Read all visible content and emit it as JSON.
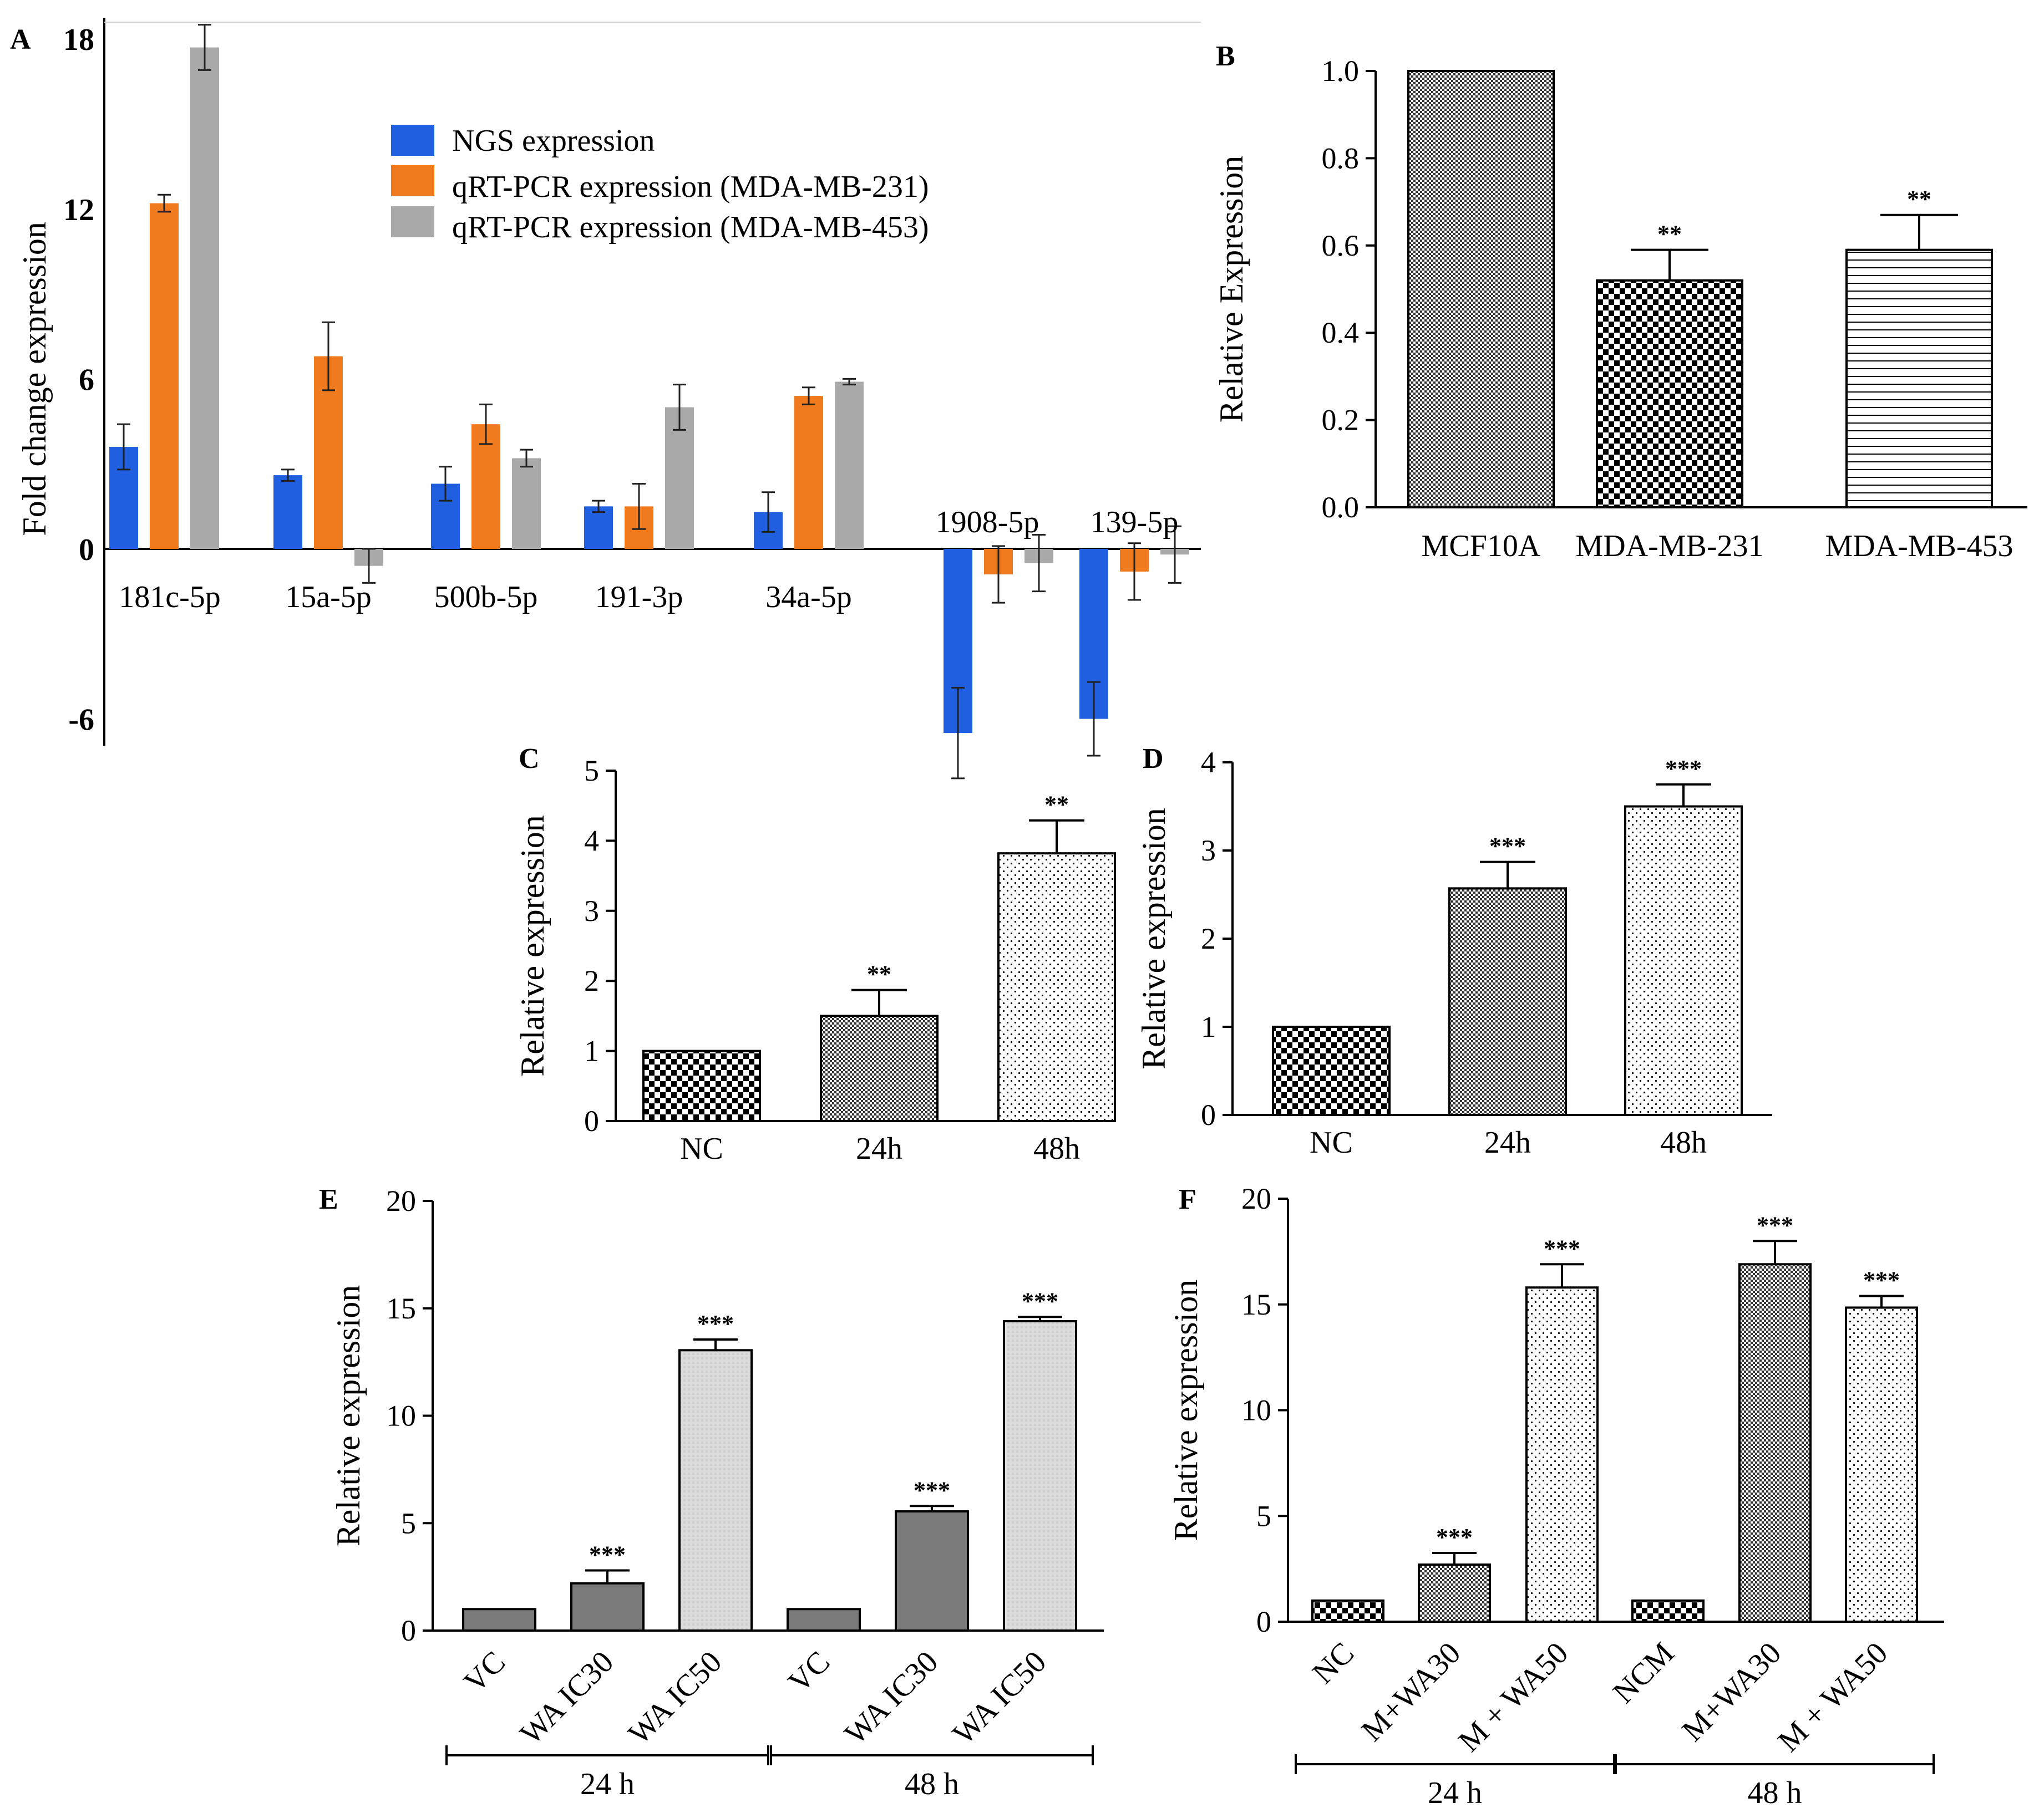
{
  "figure": {
    "colors": {
      "ngs": "#1f5fe0",
      "mda231": "#f07a1e",
      "mda453": "#a9a9a9",
      "axis": "#000000"
    }
  },
  "chart_data": [
    {
      "panel": "A",
      "type": "bar",
      "title": "",
      "xlabel": "",
      "ylabel": "Fold change expression",
      "ylim": [
        -7,
        18
      ],
      "yticks": [
        -6,
        0,
        6,
        12,
        18
      ],
      "ytick_labels": [
        "-6",
        "0",
        "6",
        "12",
        "18"
      ],
      "categories": [
        "181c-5p",
        "15a-5p",
        "500b-5p",
        "191-3p",
        "34a-5p",
        "1908-5p",
        "139-5p"
      ],
      "legend_position": "top-center",
      "series": [
        {
          "name": "NGS expression",
          "color": "#1f5fe0",
          "values": [
            3.6,
            2.6,
            2.3,
            1.5,
            1.3,
            -6.5,
            -6.0
          ],
          "errors": [
            0.8,
            0.2,
            0.6,
            0.2,
            0.7,
            1.6,
            1.3
          ]
        },
        {
          "name": "qRT-PCR expression (MDA-MB-231)",
          "color": "#f07a1e",
          "values": [
            12.2,
            6.8,
            4.4,
            1.5,
            5.4,
            -0.9,
            -0.8
          ],
          "errors": [
            0.3,
            1.2,
            0.7,
            0.8,
            0.3,
            1.0,
            1.0
          ]
        },
        {
          "name": "qRT-PCR expression (MDA-MB-453)",
          "color": "#a9a9a9",
          "values": [
            17.7,
            -0.6,
            3.2,
            5.0,
            5.9,
            -0.5,
            -0.2
          ],
          "errors": [
            0.8,
            0.6,
            0.3,
            0.8,
            0.1,
            1.0,
            1.0
          ]
        }
      ]
    },
    {
      "panel": "B",
      "type": "bar",
      "ylabel": "Relative Expression",
      "ylim": [
        0,
        1.0
      ],
      "yticks": [
        "0.0",
        "0.2",
        "0.4",
        "0.6",
        "0.8",
        "1.0"
      ],
      "categories": [
        "MCF10A",
        "MDA-MB-231",
        "MDA-MB-453"
      ],
      "values": [
        1.0,
        0.52,
        0.59
      ],
      "errors": [
        0,
        0.07,
        0.08
      ],
      "significance": [
        "",
        "**",
        "**"
      ],
      "patterns": [
        "fine",
        "checker",
        "hlines"
      ]
    },
    {
      "panel": "C",
      "type": "bar",
      "ylabel": "Relative expression",
      "ylim": [
        0,
        5
      ],
      "yticks": [
        "0",
        "1",
        "2",
        "3",
        "4",
        "5"
      ],
      "categories": [
        "NC",
        "24h",
        "48h"
      ],
      "values": [
        1.0,
        1.5,
        3.82
      ],
      "errors": [
        0,
        0.37,
        0.47
      ],
      "significance": [
        "",
        "**",
        "**"
      ],
      "patterns": [
        "checker",
        "fine",
        "dots"
      ]
    },
    {
      "panel": "D",
      "type": "bar",
      "ylabel": "Relative expression",
      "ylim": [
        0,
        4
      ],
      "yticks": [
        "0",
        "1",
        "2",
        "3",
        "4"
      ],
      "categories": [
        "NC",
        "24h",
        "48h"
      ],
      "values": [
        1.0,
        2.57,
        3.5
      ],
      "errors": [
        0,
        0.3,
        0.25
      ],
      "significance": [
        "",
        "***",
        "***"
      ],
      "patterns": [
        "checker",
        "fine",
        "dots"
      ]
    },
    {
      "panel": "E",
      "type": "bar",
      "ylabel": "Relative expression",
      "ylim": [
        0,
        20
      ],
      "yticks": [
        "0",
        "5",
        "10",
        "15",
        "20"
      ],
      "categories": [
        "VC",
        "WA IC30",
        "WA IC50",
        "VC",
        "WA IC30",
        "WA IC50"
      ],
      "groups": [
        {
          "label": "24 h",
          "from": 0,
          "to": 2
        },
        {
          "label": "48 h",
          "from": 3,
          "to": 5
        }
      ],
      "values": [
        1.0,
        2.2,
        13.05,
        1.0,
        5.55,
        14.4
      ],
      "errors": [
        0,
        0.6,
        0.5,
        0,
        0.25,
        0.2
      ],
      "significance": [
        "",
        "***",
        "***",
        "",
        "***",
        "***"
      ],
      "patterns": [
        "darkgray",
        "darkgray",
        "lightgrid",
        "darkgray",
        "darkgray",
        "lightgrid"
      ]
    },
    {
      "panel": "F",
      "type": "bar",
      "ylabel": "Relative expression",
      "ylim": [
        0,
        20
      ],
      "yticks": [
        "0",
        "5",
        "10",
        "15",
        "20"
      ],
      "categories": [
        "NC",
        "M+WA30",
        "M + WA50",
        "NCM",
        "M+WA30",
        "M + WA50"
      ],
      "groups": [
        {
          "label": "24 h",
          "from": 0,
          "to": 2
        },
        {
          "label": "48 h",
          "from": 3,
          "to": 5
        }
      ],
      "values": [
        1.0,
        2.7,
        15.8,
        1.0,
        16.9,
        14.85
      ],
      "errors": [
        0,
        0.55,
        1.1,
        0,
        1.1,
        0.55
      ],
      "significance": [
        "",
        "***",
        "***",
        "",
        "***",
        "***"
      ],
      "patterns": [
        "checker",
        "fine",
        "dots",
        "checker",
        "fine",
        "dots"
      ]
    }
  ]
}
